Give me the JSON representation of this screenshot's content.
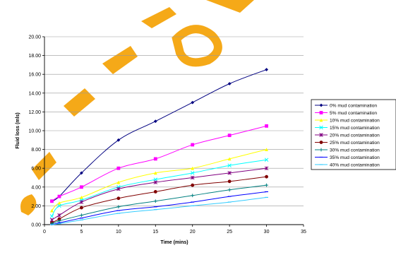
{
  "chart_data": {
    "type": "line",
    "title": "",
    "xlabel": "Time (mins)",
    "ylabel": "Fluid loss (mls)",
    "xlim": [
      0,
      35
    ],
    "ylim": [
      0,
      20
    ],
    "x_ticks": [
      "0",
      "5",
      "10",
      "15",
      "20",
      "25",
      "30",
      "35"
    ],
    "y_ticks": [
      "0.00",
      "2.00",
      "4.00",
      "6.00",
      "8.00",
      "10.00",
      "12.00",
      "14.00",
      "16.00",
      "18.00",
      "20.00"
    ],
    "grid": "horizontal",
    "legend_position": "right",
    "x": [
      1,
      2,
      5,
      10,
      15,
      20,
      25,
      30
    ],
    "series": [
      {
        "name": "0% mud contamination",
        "color": "#000080",
        "marker": "diamond",
        "values": [
          2.5,
          3.0,
          5.5,
          9.0,
          11.0,
          13.0,
          15.0,
          16.5
        ]
      },
      {
        "name": "5% mud contamination",
        "color": "#ff00ff",
        "marker": "square",
        "values": [
          2.5,
          3.0,
          4.0,
          6.0,
          7.0,
          8.5,
          9.5,
          10.5
        ]
      },
      {
        "name": "10% mud contamination",
        "color": "#ffff00",
        "marker": "triangle",
        "values": [
          1.5,
          2.3,
          2.9,
          4.5,
          5.5,
          6.0,
          7.0,
          8.0
        ]
      },
      {
        "name": "15% mud contamination",
        "color": "#00ffff",
        "marker": "x",
        "values": [
          0.9,
          2.0,
          2.6,
          4.0,
          4.8,
          5.5,
          6.3,
          6.9
        ]
      },
      {
        "name": "20% mud contamination",
        "color": "#800080",
        "marker": "star",
        "values": [
          0.5,
          1.0,
          2.4,
          3.8,
          4.5,
          5.0,
          5.5,
          6.0
        ]
      },
      {
        "name": "25% mud contamination",
        "color": "#800000",
        "marker": "circle",
        "values": [
          0.2,
          0.6,
          1.8,
          2.8,
          3.5,
          4.2,
          4.6,
          5.1
        ]
      },
      {
        "name": "30% mud contamination",
        "color": "#008080",
        "marker": "plus",
        "values": [
          0.1,
          0.4,
          1.0,
          1.9,
          2.5,
          3.1,
          3.7,
          4.2
        ]
      },
      {
        "name": "35% mud contamination",
        "color": "#0000ff",
        "marker": "dash",
        "values": [
          0.0,
          0.2,
          0.7,
          1.5,
          1.9,
          2.4,
          3.0,
          3.5
        ]
      },
      {
        "name": "40% mud contamination",
        "color": "#33ccff",
        "marker": "dash",
        "values": [
          0.0,
          0.1,
          0.5,
          1.2,
          1.6,
          2.0,
          2.4,
          2.9
        ]
      }
    ]
  }
}
